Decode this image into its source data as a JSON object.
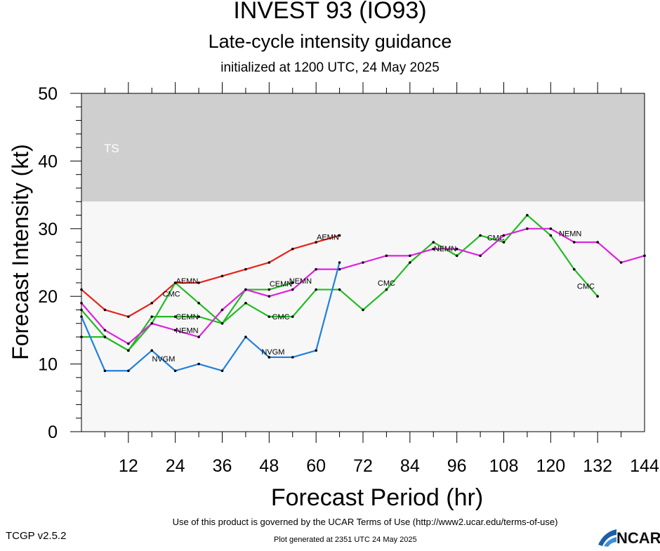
{
  "header": {
    "title": "INVEST 93 (IO93)",
    "subtitle": "Late-cycle intensity guidance",
    "init": "initialized at 1200 UTC, 24 May 2025"
  },
  "footer": {
    "terms": "Use of this product is governed by the UCAR Terms of Use (http://www2.ucar.edu/terms-of-use)",
    "version": "TCGP v2.5.2",
    "generated": "Plot generated at 2351 UTC   24 May 2025",
    "logo_text": "NCAR"
  },
  "chart_data": {
    "type": "line",
    "title": "Late-cycle intensity guidance",
    "xlabel": "Forecast Period (hr)",
    "ylabel": "Forecast Intensity (kt)",
    "xlim": [
      0,
      144
    ],
    "ylim": [
      0,
      50
    ],
    "xticks": [
      12,
      24,
      36,
      48,
      60,
      72,
      84,
      96,
      108,
      120,
      132,
      144
    ],
    "yticks": [
      0,
      10,
      20,
      30,
      40,
      50
    ],
    "bands": [
      {
        "label": "TS",
        "from": 34,
        "to": 50,
        "color": "#cfcfcf"
      },
      {
        "label": "",
        "from": 0,
        "to": 34,
        "color": "#f7f7f7"
      }
    ],
    "series": [
      {
        "name": "AEMN",
        "color": "#e8231b",
        "points": [
          [
            0,
            21
          ],
          [
            6,
            18
          ],
          [
            12,
            17
          ],
          [
            18,
            19
          ],
          [
            24,
            22
          ],
          [
            30,
            22
          ],
          [
            36,
            23
          ],
          [
            42,
            24
          ],
          [
            48,
            25
          ],
          [
            54,
            27
          ],
          [
            60,
            28
          ],
          [
            66,
            29
          ]
        ],
        "labels": [
          [
            27,
            22.3,
            "AEMN"
          ],
          [
            63,
            28.8,
            "AEMN"
          ]
        ]
      },
      {
        "name": "CMC",
        "color": "#22bb22",
        "points": [
          [
            0,
            18
          ],
          [
            6,
            14
          ],
          [
            12,
            12
          ],
          [
            18,
            16
          ],
          [
            24,
            22
          ],
          [
            30,
            19
          ],
          [
            36,
            16
          ],
          [
            42,
            19
          ],
          [
            48,
            17
          ],
          [
            54,
            17
          ],
          [
            60,
            21
          ],
          [
            66,
            21
          ],
          [
            72,
            18
          ],
          [
            78,
            21
          ],
          [
            84,
            25
          ],
          [
            90,
            28
          ],
          [
            96,
            26
          ],
          [
            102,
            29
          ],
          [
            108,
            28
          ],
          [
            114,
            32
          ],
          [
            120,
            29
          ],
          [
            126,
            24
          ],
          [
            132,
            20
          ]
        ],
        "labels": [
          [
            23,
            20.4,
            "CMC"
          ],
          [
            51,
            17,
            "CMC"
          ],
          [
            78,
            22,
            "CMC"
          ],
          [
            106,
            28.7,
            "CMC"
          ],
          [
            129,
            21.5,
            "CMC"
          ]
        ]
      },
      {
        "name": "CEMN",
        "color": "#22bb22",
        "points": [
          [
            0,
            14
          ],
          [
            6,
            14
          ],
          [
            12,
            12
          ],
          [
            18,
            17
          ],
          [
            24,
            17
          ],
          [
            30,
            17
          ],
          [
            36,
            16
          ],
          [
            42,
            21
          ],
          [
            48,
            21
          ],
          [
            54,
            22
          ]
        ],
        "labels": [
          [
            27,
            17,
            "CEMN"
          ],
          [
            51,
            21.9,
            "CEMN"
          ]
        ]
      },
      {
        "name": "NEMN",
        "color": "#e020e0",
        "points": [
          [
            0,
            19
          ],
          [
            6,
            15
          ],
          [
            12,
            13
          ],
          [
            18,
            16
          ],
          [
            24,
            15
          ],
          [
            30,
            14
          ],
          [
            36,
            18
          ],
          [
            42,
            21
          ],
          [
            48,
            20
          ],
          [
            54,
            21
          ],
          [
            60,
            24
          ],
          [
            66,
            24
          ],
          [
            72,
            25
          ],
          [
            78,
            26
          ],
          [
            84,
            26
          ],
          [
            90,
            27
          ],
          [
            96,
            27
          ],
          [
            102,
            26
          ],
          [
            108,
            29
          ],
          [
            114,
            30
          ],
          [
            120,
            30
          ],
          [
            126,
            28
          ],
          [
            132,
            28
          ],
          [
            138,
            25
          ],
          [
            144,
            26
          ]
        ],
        "labels": [
          [
            27,
            15,
            "NEMN"
          ],
          [
            56,
            22.3,
            "NEMN"
          ],
          [
            93,
            27.1,
            "NEMN"
          ],
          [
            125,
            29.3,
            "NEMN"
          ]
        ]
      },
      {
        "name": "NVGM",
        "color": "#2080e0",
        "points": [
          [
            0,
            17
          ],
          [
            6,
            9
          ],
          [
            12,
            9
          ],
          [
            18,
            12
          ],
          [
            24,
            9
          ],
          [
            30,
            10
          ],
          [
            36,
            9
          ],
          [
            42,
            14
          ],
          [
            48,
            11
          ],
          [
            54,
            11
          ],
          [
            60,
            12
          ],
          [
            66,
            25
          ]
        ],
        "labels": [
          [
            21,
            10.8,
            "NVGM"
          ],
          [
            49,
            11.8,
            "NVGM"
          ]
        ]
      }
    ]
  }
}
